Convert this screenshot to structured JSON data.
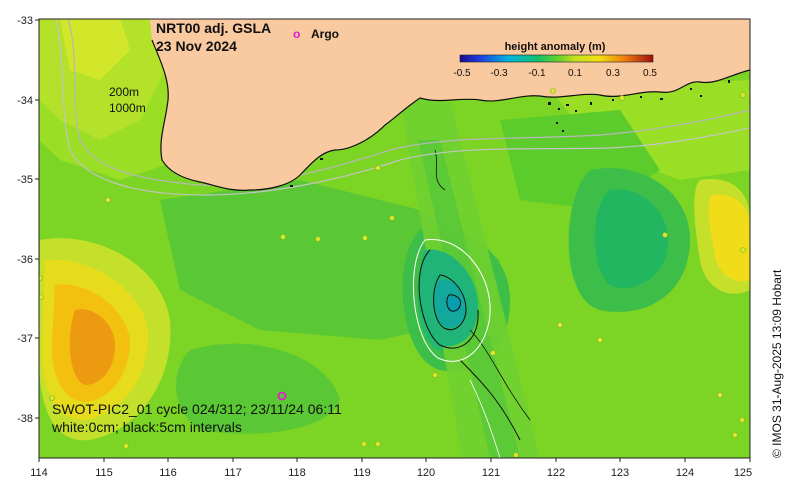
{
  "title": {
    "line1": "NRT00 adj. GSLA",
    "line2": "23 Nov 2024"
  },
  "argo_legend": {
    "symbol": "o",
    "label": "Argo"
  },
  "colorbar": {
    "title": "height anomaly (m)",
    "ticks": [
      "-0.5",
      "-0.3",
      "-0.1",
      "0.1",
      "0.3",
      "0.5"
    ]
  },
  "depth_labels": [
    "200m",
    "1000m"
  ],
  "swot": {
    "line1": "SWOT-PIC2_01 cycle 024/312; 23/11/24 06:11",
    "line2": "white:0cm; black:5cm intervals"
  },
  "credit": "© IMOS 31-Aug-2025 13:09 Hobart",
  "axes": {
    "x_ticks": [
      "114",
      "115",
      "116",
      "117",
      "118",
      "119",
      "120",
      "121",
      "122",
      "123",
      "124",
      "125"
    ],
    "y_ticks": [
      "-33",
      "-34",
      "-35",
      "-36",
      "-37",
      "-38"
    ]
  },
  "colors": {
    "land": "#f9c9a0",
    "base_ocean": "#7cd424",
    "argo": "#e01ad0"
  }
}
